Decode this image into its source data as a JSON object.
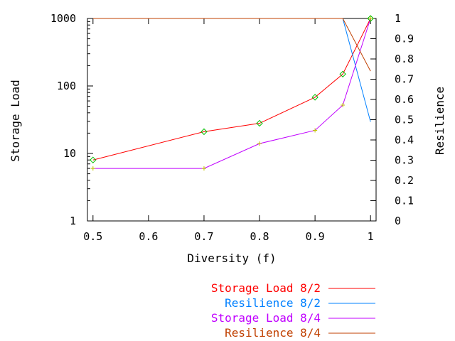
{
  "chart_data": {
    "type": "line",
    "xlabel": "Diversity (f)",
    "ylabel_left": "Storage Load",
    "ylabel_right": "Resilience",
    "x_ticks": [
      "0.5",
      "0.6",
      "0.7",
      "0.8",
      "0.9",
      "1"
    ],
    "y_left_ticks": [
      "1",
      "10",
      "100",
      "1000"
    ],
    "y_right_ticks": [
      "0",
      "0.1",
      "0.2",
      "0.3",
      "0.4",
      "0.5",
      "0.6",
      "0.7",
      "0.8",
      "0.9",
      "1"
    ],
    "xlim": [
      0.49,
      1.01
    ],
    "ylim_left": [
      1,
      1000
    ],
    "ylim_right": [
      0,
      1
    ],
    "y_left_scale": "log",
    "legend_placement": "bottom",
    "series": [
      {
        "name": "Storage Load 8/2",
        "axis": "left",
        "color": "#ff0000",
        "marker": "diamond",
        "x": [
          0.5,
          0.7,
          0.8,
          0.9,
          0.95,
          1.0
        ],
        "values": [
          8,
          21,
          28,
          68,
          150,
          1000
        ]
      },
      {
        "name": "Resilience 8/2",
        "axis": "right",
        "color": "#0080ff",
        "marker": "none",
        "x": [
          0.5,
          0.7,
          0.8,
          0.9,
          0.95,
          1.0
        ],
        "values": [
          1,
          1,
          1,
          1,
          1,
          0.49
        ]
      },
      {
        "name": "Storage Load 8/4",
        "axis": "left",
        "color": "#c000ff",
        "marker": "plus",
        "x": [
          0.5,
          0.7,
          0.8,
          0.9,
          0.95,
          1.0
        ],
        "values": [
          6,
          6,
          14,
          22,
          52,
          1000
        ]
      },
      {
        "name": "Resilience 8/4",
        "axis": "right",
        "color": "#c04000",
        "marker": "none",
        "x": [
          0.5,
          0.7,
          0.8,
          0.9,
          0.95,
          1.0
        ],
        "values": [
          1,
          1,
          1,
          1,
          1,
          0.74
        ]
      }
    ]
  }
}
